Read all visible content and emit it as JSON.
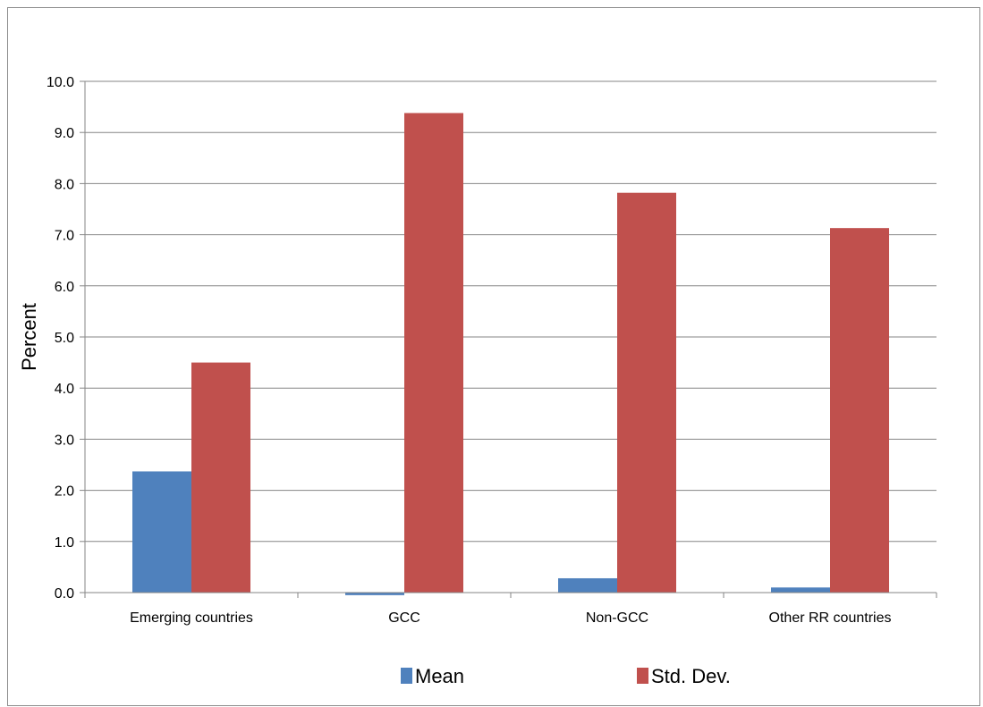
{
  "chart_data": {
    "type": "bar",
    "title": "",
    "xlabel": "",
    "ylabel": "Percent",
    "ylim": [
      0,
      10
    ],
    "yticks": [
      "0.0",
      "1.0",
      "2.0",
      "3.0",
      "4.0",
      "5.0",
      "6.0",
      "7.0",
      "8.0",
      "9.0",
      "10.0"
    ],
    "categories": [
      "Emerging countries",
      "GCC",
      "Non-GCC",
      "Other RR countries"
    ],
    "series": [
      {
        "name": "Mean",
        "color": "#4f81bd",
        "values": [
          2.37,
          -0.05,
          0.28,
          0.1
        ]
      },
      {
        "name": "Std. Dev.",
        "color": "#c0504d",
        "values": [
          4.5,
          9.38,
          7.82,
          7.13
        ]
      }
    ],
    "grid": true,
    "legend_position": "bottom"
  }
}
